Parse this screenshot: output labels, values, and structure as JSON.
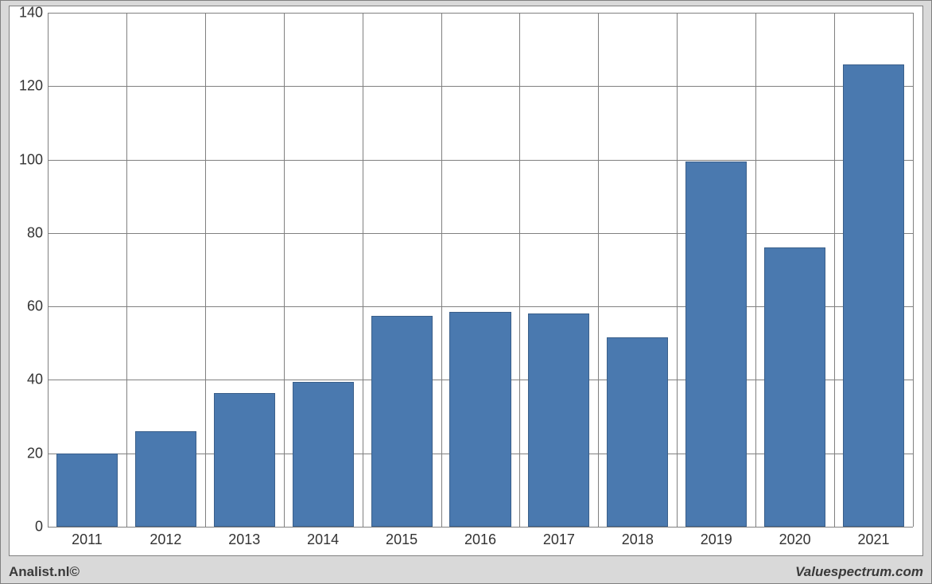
{
  "chart": {
    "type": "bar",
    "background_color": "#ffffff",
    "frame_background_color": "#d9d9d9",
    "frame_border_color": "#808080",
    "grid_color": "#808080",
    "bar_color": "#4a79af",
    "bar_border_color": "#3a5f8a",
    "label_color": "#333333",
    "label_fontsize": 18,
    "bar_width_ratio": 0.78,
    "ylim": [
      0,
      140
    ],
    "ytick_step": 20,
    "y_ticks": [
      0,
      20,
      40,
      60,
      80,
      100,
      120,
      140
    ],
    "categories": [
      "2011",
      "2012",
      "2013",
      "2014",
      "2015",
      "2016",
      "2017",
      "2018",
      "2019",
      "2020",
      "2021"
    ],
    "values": [
      20,
      26,
      36.5,
      39.5,
      57.5,
      58.5,
      58,
      51.5,
      99.5,
      76,
      126
    ]
  },
  "footer": {
    "left": "Analist.nl©",
    "right": "Valuespectrum.com"
  }
}
